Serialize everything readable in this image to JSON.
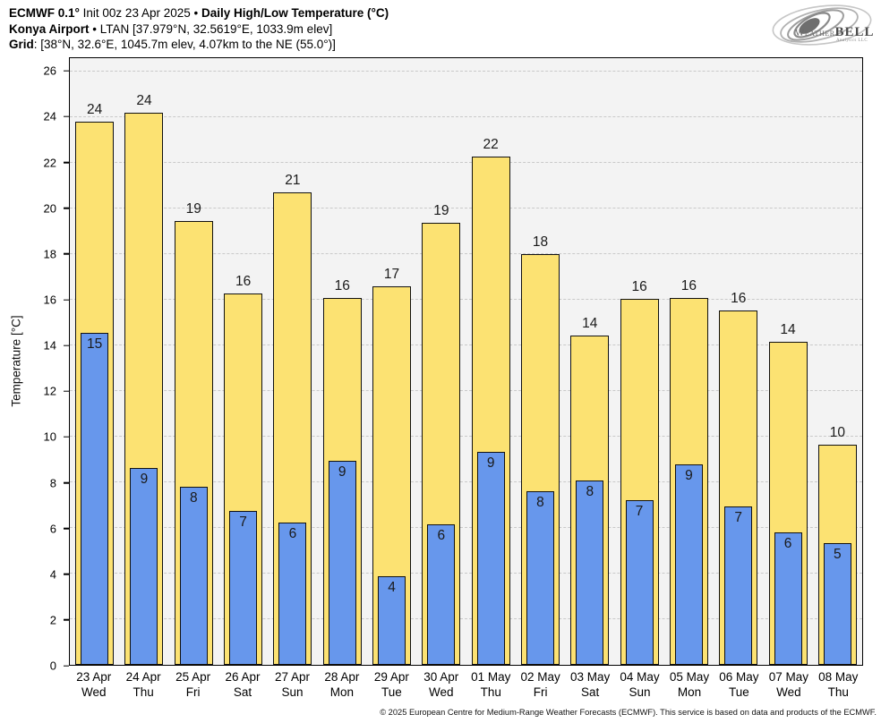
{
  "header": {
    "title_bold1": "ECMWF 0.1°",
    "title_mid": " Init 00z 23 Apr 2025 • ",
    "title_bold2": "Daily High/Low Temperature (°C)",
    "line2_bold": "Konya Airport",
    "line2_rest": " • LTAN [37.979°N, 32.5619°E, 1033.9m elev]",
    "line3_bold": "Grid",
    "line3_rest": ": [38°N, 32.6°E, 1045.7m elev, 4.07km to the NE (55.0°)]"
  },
  "logo": {
    "weather": "Weather",
    "bell": "BELL",
    "subtext": "Analytics LLC"
  },
  "chart_data": {
    "type": "bar",
    "title": "ECMWF 0.1° Init 00z 23 Apr 2025 • Daily High/Low Temperature (°C)",
    "location": "Konya Airport • LTAN [37.979°N, 32.5619°E, 1033.9m elev]",
    "grid_point": "[38°N, 32.6°E, 1045.7m elev, 4.07km to the NE (55.0°)]",
    "xlabel": "",
    "ylabel": "Temperature [°C]",
    "ylim": [
      0,
      26.6
    ],
    "yticks": [
      0,
      2,
      4,
      6,
      8,
      10,
      12,
      14,
      16,
      18,
      20,
      22,
      24,
      26
    ],
    "grid_on": true,
    "legend_position": "none",
    "categories": [
      {
        "date": "23 Apr",
        "day": "Wed"
      },
      {
        "date": "24 Apr",
        "day": "Thu"
      },
      {
        "date": "25 Apr",
        "day": "Fri"
      },
      {
        "date": "26 Apr",
        "day": "Sat"
      },
      {
        "date": "27 Apr",
        "day": "Sun"
      },
      {
        "date": "28 Apr",
        "day": "Mon"
      },
      {
        "date": "29 Apr",
        "day": "Tue"
      },
      {
        "date": "30 Apr",
        "day": "Wed"
      },
      {
        "date": "01 May",
        "day": "Thu"
      },
      {
        "date": "02 May",
        "day": "Fri"
      },
      {
        "date": "03 May",
        "day": "Sat"
      },
      {
        "date": "04 May",
        "day": "Sun"
      },
      {
        "date": "05 May",
        "day": "Mon"
      },
      {
        "date": "06 May",
        "day": "Tue"
      },
      {
        "date": "07 May",
        "day": "Wed"
      },
      {
        "date": "08 May",
        "day": "Thu"
      }
    ],
    "series": [
      {
        "name": "Daily High",
        "color": "#FCE272",
        "labels": [
          24,
          24,
          19,
          16,
          21,
          16,
          17,
          19,
          22,
          18,
          14,
          16,
          16,
          16,
          14,
          10
        ],
        "values": [
          23.8,
          24.2,
          19.45,
          16.3,
          20.7,
          16.1,
          16.6,
          19.4,
          22.3,
          18.0,
          14.45,
          16.05,
          16.1,
          15.55,
          14.15,
          9.65
        ]
      },
      {
        "name": "Daily Low",
        "color": "#6797EC",
        "labels": [
          15,
          9,
          8,
          7,
          6,
          9,
          4,
          6,
          9,
          8,
          8,
          7,
          9,
          7,
          6,
          5
        ],
        "values": [
          14.55,
          8.65,
          7.8,
          6.75,
          6.25,
          8.95,
          3.9,
          6.15,
          9.35,
          7.6,
          8.1,
          7.2,
          8.8,
          6.95,
          5.8,
          5.35
        ]
      }
    ],
    "colors": {
      "plot_bg": "#F3F3F3",
      "gridline": "#C9C9C9",
      "bar_outline": "#111111",
      "high_bar": "#FCE272",
      "low_bar": "#6797EC"
    }
  },
  "footer": {
    "copyright": "© 2025 European Centre for Medium-Range Weather Forecasts (ECMWF). This service is based on data and products of the ECMWF."
  }
}
